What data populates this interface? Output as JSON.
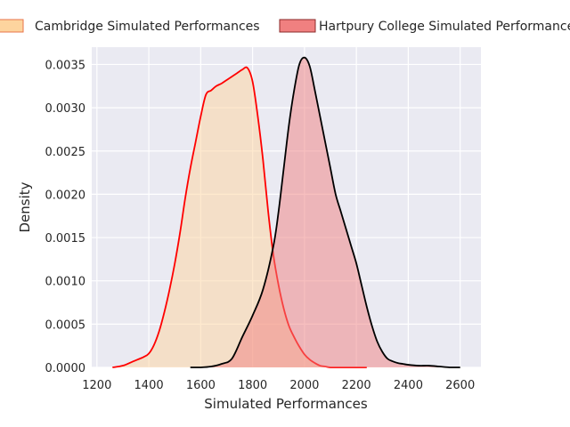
{
  "chart_data": {
    "type": "area",
    "title": "",
    "xlabel": "Simulated Performances",
    "ylabel": "Density",
    "xlim": [
      1180,
      2680
    ],
    "ylim": [
      0,
      0.0037
    ],
    "xticks": [
      1200,
      1400,
      1600,
      1800,
      2000,
      2200,
      2400,
      2600
    ],
    "xtick_labels": [
      "1200",
      "1400",
      "1600",
      "1800",
      "2000",
      "2200",
      "2400",
      "2600"
    ],
    "yticks": [
      0,
      0.0005,
      0.001,
      0.0015,
      0.002,
      0.0025,
      0.003,
      0.0035
    ],
    "ytick_labels": [
      "0.0000",
      "0.0005",
      "0.0010",
      "0.0015",
      "0.0020",
      "0.0025",
      "0.0030",
      "0.0035"
    ],
    "grid": true,
    "legend_position": "top",
    "background_color": "#eaeaf2",
    "series": [
      {
        "name": "Cambridge Simulated Performances",
        "fill_color": "#fdd49e",
        "line_color": "#ff0000",
        "x": [
          1260,
          1300,
          1340,
          1380,
          1400,
          1420,
          1440,
          1460,
          1480,
          1500,
          1520,
          1540,
          1560,
          1580,
          1600,
          1620,
          1640,
          1660,
          1680,
          1700,
          1720,
          1740,
          1760,
          1780,
          1800,
          1820,
          1840,
          1860,
          1880,
          1900,
          1920,
          1940,
          1960,
          1980,
          2000,
          2020,
          2040,
          2060,
          2080,
          2100,
          2140,
          2180,
          2240
        ],
        "y": [
          0.0,
          2e-05,
          7e-05,
          0.00012,
          0.00016,
          0.00026,
          0.00042,
          0.00064,
          0.0009,
          0.0012,
          0.00155,
          0.00195,
          0.0023,
          0.0026,
          0.0029,
          0.00315,
          0.0032,
          0.00325,
          0.00328,
          0.00332,
          0.00336,
          0.0034,
          0.00344,
          0.00346,
          0.0033,
          0.0029,
          0.0024,
          0.0018,
          0.0013,
          0.00095,
          0.00068,
          0.00048,
          0.00035,
          0.00024,
          0.00015,
          9e-05,
          5e-05,
          2e-05,
          1e-05,
          0.0,
          0.0,
          0.0,
          0.0
        ]
      },
      {
        "name": "Hartpury College Simulated Performances",
        "fill_color": "#f08080",
        "line_color": "#000000",
        "x": [
          1560,
          1600,
          1640,
          1680,
          1720,
          1760,
          1800,
          1840,
          1880,
          1900,
          1920,
          1940,
          1960,
          1980,
          2000,
          2020,
          2040,
          2060,
          2080,
          2100,
          2120,
          2140,
          2160,
          2180,
          2200,
          2220,
          2240,
          2260,
          2280,
          2300,
          2320,
          2340,
          2360,
          2380,
          2400,
          2440,
          2480,
          2520,
          2560,
          2600
        ],
        "y": [
          0.0,
          0.0,
          1e-05,
          4e-05,
          0.0001,
          0.00035,
          0.0006,
          0.0009,
          0.0014,
          0.0018,
          0.0023,
          0.0028,
          0.0032,
          0.0035,
          0.00358,
          0.00348,
          0.0032,
          0.0029,
          0.0026,
          0.0023,
          0.002,
          0.0018,
          0.0016,
          0.0014,
          0.0012,
          0.00095,
          0.0007,
          0.00048,
          0.0003,
          0.00018,
          0.0001,
          7e-05,
          5e-05,
          4e-05,
          3e-05,
          2e-05,
          2e-05,
          1e-05,
          0.0,
          0.0
        ]
      }
    ]
  }
}
